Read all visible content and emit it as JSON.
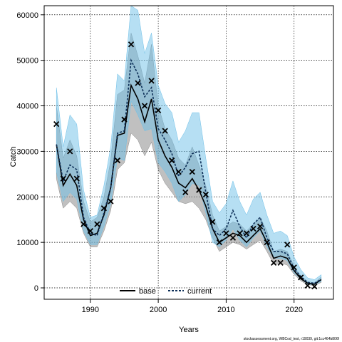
{
  "chart_data": {
    "type": "line",
    "xlabel": "Years",
    "ylabel": "Catch",
    "xlim": [
      1983.2,
      2025.8
    ],
    "ylim": [
      -2500,
      62000
    ],
    "x_ticks": [
      1990,
      2000,
      2010,
      2020
    ],
    "y_ticks": [
      0,
      10000,
      20000,
      30000,
      40000,
      50000,
      60000
    ],
    "grid": true,
    "legend_position": "bottom-center",
    "footnote": "stockassessment.org, WBCod_test, r19039, git:1cc464b806f",
    "colors": {
      "base_band": "#8c8c8c",
      "current_band": "#6ec0e8",
      "base_line": "#000000",
      "current_line": "#0d2f58",
      "grid": "#000000"
    },
    "x": [
      1985,
      1986,
      1987,
      1988,
      1989,
      1990,
      1991,
      1992,
      1993,
      1994,
      1995,
      1996,
      1997,
      1998,
      1999,
      2000,
      2001,
      2002,
      2003,
      2004,
      2005,
      2006,
      2007,
      2008,
      2009,
      2010,
      2011,
      2012,
      2013,
      2014,
      2015,
      2016,
      2017,
      2018,
      2019,
      2020,
      2021,
      2022,
      2023,
      2024
    ],
    "series": [
      {
        "name": "base",
        "line": [
          31500,
          22500,
          25000,
          22500,
          15000,
          11500,
          12000,
          16000,
          22000,
          33500,
          34000,
          44500,
          41500,
          36500,
          41500,
          32500,
          29000,
          26500,
          23000,
          22000,
          24000,
          21500,
          18000,
          13000,
          10000,
          11000,
          12000,
          11500,
          10000,
          11500,
          13000,
          10000,
          6500,
          7000,
          6500,
          3800,
          2000,
          1000,
          800,
          1800
        ],
        "lower": [
          24000,
          17500,
          19000,
          17500,
          12000,
          9000,
          9000,
          12500,
          17000,
          26000,
          27500,
          34000,
          32500,
          29000,
          32000,
          26000,
          23000,
          21000,
          19000,
          18500,
          19000,
          17500,
          15000,
          11000,
          8000,
          9000,
          10000,
          9500,
          8500,
          9500,
          10500,
          8000,
          5200,
          5500,
          5000,
          3000,
          1500,
          700,
          500,
          1200
        ],
        "upper": [
          40000,
          28500,
          32500,
          29000,
          19000,
          14500,
          15500,
          20000,
          28000,
          42500,
          43500,
          56000,
          51000,
          45000,
          53500,
          40000,
          35000,
          32500,
          28500,
          27000,
          31000,
          27000,
          22500,
          16000,
          12500,
          13500,
          14500,
          14000,
          12500,
          14000,
          15500,
          12500,
          8000,
          8500,
          8000,
          4800,
          2600,
          1400,
          1100,
          2400
        ]
      },
      {
        "name": "current",
        "line": [
          31500,
          23500,
          27000,
          26000,
          15500,
          12000,
          11500,
          16500,
          22000,
          34000,
          34500,
          50000,
          47000,
          42000,
          44000,
          35000,
          32500,
          29500,
          24500,
          26500,
          29500,
          30000,
          21000,
          13000,
          11500,
          13000,
          17000,
          13500,
          11000,
          14000,
          15500,
          11000,
          8000,
          8000,
          7500,
          4200,
          2500,
          1200,
          1000,
          1900
        ],
        "lower": [
          25500,
          19000,
          21000,
          19500,
          12500,
          9500,
          9500,
          13500,
          18500,
          28500,
          28000,
          41000,
          38000,
          34500,
          35000,
          27500,
          25500,
          23000,
          19000,
          20500,
          23000,
          22500,
          16500,
          10000,
          9000,
          10500,
          13000,
          10500,
          9000,
          11000,
          12500,
          9000,
          6500,
          6500,
          6000,
          3300,
          1900,
          800,
          700,
          1400
        ],
        "upper": [
          44000,
          31000,
          38000,
          36000,
          21500,
          15500,
          16000,
          22500,
          31000,
          47000,
          45500,
          62000,
          61000,
          51500,
          56000,
          44500,
          40500,
          38500,
          32000,
          34500,
          38500,
          38500,
          28500,
          19000,
          16500,
          18500,
          23500,
          19000,
          16000,
          19500,
          21000,
          16000,
          12000,
          12500,
          11500,
          6800,
          4000,
          2200,
          1800,
          2900
        ]
      }
    ],
    "observed": {
      "name": "observed",
      "x": [
        1985,
        1986,
        1987,
        1988,
        1989,
        1990,
        1991,
        1992,
        1993,
        1994,
        1995,
        1996,
        1997,
        1998,
        1999,
        2000,
        2001,
        2002,
        2003,
        2004,
        2005,
        2006,
        2007,
        2008,
        2009,
        2010,
        2011,
        2012,
        2013,
        2014,
        2015,
        2016,
        2017,
        2018,
        2019,
        2020,
        2021,
        2022,
        2023
      ],
      "y": [
        36000,
        24000,
        30000,
        24000,
        14000,
        12500,
        14000,
        17500,
        19000,
        28000,
        37000,
        53500,
        45000,
        40000,
        45500,
        39000,
        34500,
        28000,
        25500,
        21000,
        25500,
        21500,
        20500,
        14500,
        10000,
        12000,
        11000,
        12000,
        12000,
        13000,
        13500,
        10000,
        5500,
        5500,
        9500,
        4500,
        2300,
        500,
        300
      ]
    },
    "legend": [
      {
        "label": "base",
        "style": "solid"
      },
      {
        "label": "current",
        "style": "dashed"
      }
    ]
  }
}
